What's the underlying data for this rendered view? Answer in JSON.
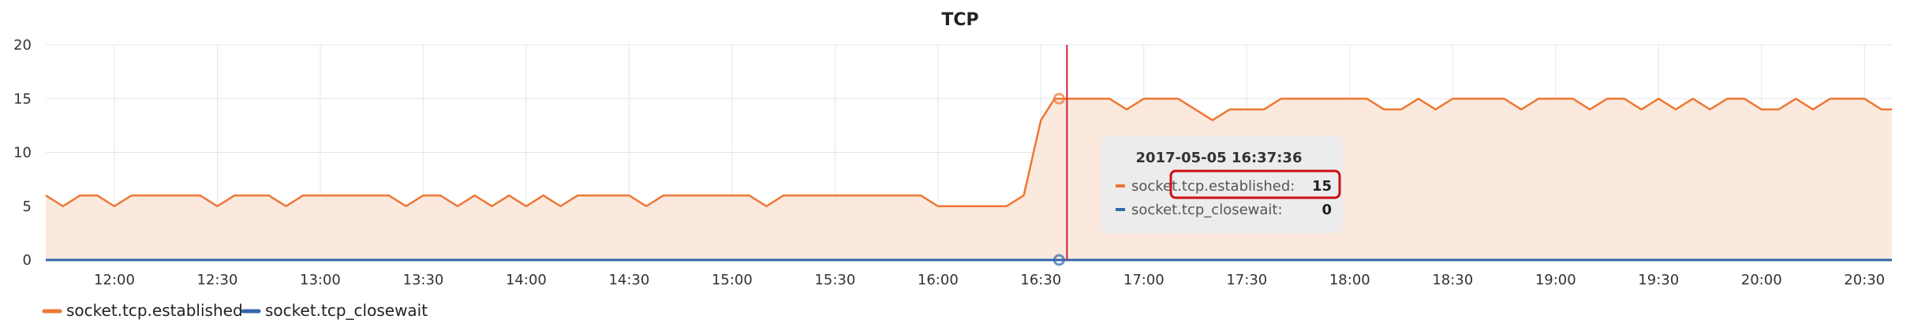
{
  "chart_data": {
    "type": "area",
    "title": "TCP",
    "xlabel": "",
    "ylabel": "",
    "ylim": [
      0,
      20
    ],
    "yticks": [
      0,
      5,
      10,
      15,
      20
    ],
    "x_range": [
      "11:40",
      "20:34"
    ],
    "xticks": [
      "12:00",
      "12:30",
      "13:00",
      "13:30",
      "14:00",
      "14:30",
      "15:00",
      "15:30",
      "16:00",
      "16:30",
      "17:00",
      "17:30",
      "18:00",
      "18:30",
      "19:00",
      "19:30",
      "20:00",
      "20:30"
    ],
    "grid": true,
    "legend_position": "bottom-left",
    "series": [
      {
        "name": "socket.tcp.established",
        "color": "#ee7733",
        "fill": "#fbe9de",
        "points": [
          [
            "11:40",
            6
          ],
          [
            "11:45",
            5
          ],
          [
            "11:50",
            6
          ],
          [
            "11:55",
            6
          ],
          [
            "12:00",
            5
          ],
          [
            "12:05",
            6
          ],
          [
            "12:10",
            6
          ],
          [
            "12:15",
            6
          ],
          [
            "12:20",
            6
          ],
          [
            "12:25",
            6
          ],
          [
            "12:30",
            5
          ],
          [
            "12:35",
            6
          ],
          [
            "12:40",
            6
          ],
          [
            "12:45",
            6
          ],
          [
            "12:50",
            5
          ],
          [
            "12:55",
            6
          ],
          [
            "13:00",
            6
          ],
          [
            "13:05",
            6
          ],
          [
            "13:10",
            6
          ],
          [
            "13:15",
            6
          ],
          [
            "13:20",
            6
          ],
          [
            "13:25",
            5
          ],
          [
            "13:30",
            6
          ],
          [
            "13:35",
            6
          ],
          [
            "13:40",
            5
          ],
          [
            "13:45",
            6
          ],
          [
            "13:50",
            5
          ],
          [
            "13:55",
            6
          ],
          [
            "14:00",
            5
          ],
          [
            "14:05",
            6
          ],
          [
            "14:10",
            5
          ],
          [
            "14:15",
            6
          ],
          [
            "14:20",
            6
          ],
          [
            "14:25",
            6
          ],
          [
            "14:30",
            6
          ],
          [
            "14:35",
            5
          ],
          [
            "14:40",
            6
          ],
          [
            "14:45",
            6
          ],
          [
            "14:50",
            6
          ],
          [
            "14:55",
            6
          ],
          [
            "15:00",
            6
          ],
          [
            "15:05",
            6
          ],
          [
            "15:10",
            5
          ],
          [
            "15:15",
            6
          ],
          [
            "15:20",
            6
          ],
          [
            "15:25",
            6
          ],
          [
            "15:30",
            6
          ],
          [
            "15:35",
            6
          ],
          [
            "15:40",
            6
          ],
          [
            "15:45",
            6
          ],
          [
            "15:50",
            6
          ],
          [
            "15:55",
            6
          ],
          [
            "16:00",
            5
          ],
          [
            "16:05",
            5
          ],
          [
            "16:10",
            5
          ],
          [
            "16:15",
            5
          ],
          [
            "16:20",
            5
          ],
          [
            "16:25",
            6
          ],
          [
            "16:30",
            13
          ],
          [
            "16:34",
            15
          ],
          [
            "16:37",
            15
          ],
          [
            "16:45",
            15
          ],
          [
            "16:50",
            15
          ],
          [
            "16:55",
            14
          ],
          [
            "17:00",
            15
          ],
          [
            "17:05",
            15
          ],
          [
            "17:10",
            15
          ],
          [
            "17:15",
            14
          ],
          [
            "17:20",
            13
          ],
          [
            "17:25",
            14
          ],
          [
            "17:30",
            14
          ],
          [
            "17:35",
            14
          ],
          [
            "17:40",
            15
          ],
          [
            "17:45",
            15
          ],
          [
            "17:50",
            15
          ],
          [
            "17:55",
            15
          ],
          [
            "18:00",
            15
          ],
          [
            "18:05",
            15
          ],
          [
            "18:10",
            14
          ],
          [
            "18:15",
            14
          ],
          [
            "18:20",
            15
          ],
          [
            "18:25",
            14
          ],
          [
            "18:30",
            15
          ],
          [
            "18:35",
            15
          ],
          [
            "18:40",
            15
          ],
          [
            "18:45",
            15
          ],
          [
            "18:50",
            14
          ],
          [
            "18:55",
            15
          ],
          [
            "19:00",
            15
          ],
          [
            "19:05",
            15
          ],
          [
            "19:10",
            14
          ],
          [
            "19:15",
            15
          ],
          [
            "19:20",
            15
          ],
          [
            "19:25",
            14
          ],
          [
            "19:30",
            15
          ],
          [
            "19:35",
            14
          ],
          [
            "19:40",
            15
          ],
          [
            "19:45",
            14
          ],
          [
            "19:50",
            15
          ],
          [
            "19:55",
            15
          ],
          [
            "20:00",
            14
          ],
          [
            "20:05",
            14
          ],
          [
            "20:10",
            15
          ],
          [
            "20:15",
            14
          ],
          [
            "20:20",
            15
          ],
          [
            "20:25",
            15
          ],
          [
            "20:30",
            15
          ],
          [
            "20:35",
            14
          ],
          [
            "20:38",
            14
          ]
        ]
      },
      {
        "name": "socket.tcp_closewait",
        "color": "#3366aa",
        "points": [
          [
            "11:40",
            0
          ],
          [
            "20:38",
            0
          ]
        ]
      }
    ],
    "hover": {
      "x": "16:37:36",
      "title": "2017-05-05 16:37:36",
      "line_color": "#cc2233",
      "rows": [
        {
          "label": "socket.tcp.established:",
          "value": "15",
          "color": "#ee7733",
          "highlight": true,
          "y": 15
        },
        {
          "label": "socket.tcp_closewait:",
          "value": "0",
          "color": "#3366aa",
          "highlight": false,
          "y": 0
        }
      ]
    },
    "colors": {
      "grid": "#e6e6e6",
      "axis_zero": "#3366aa",
      "tooltip_bg": "#ececec",
      "highlight_border": "#cc1111"
    }
  }
}
